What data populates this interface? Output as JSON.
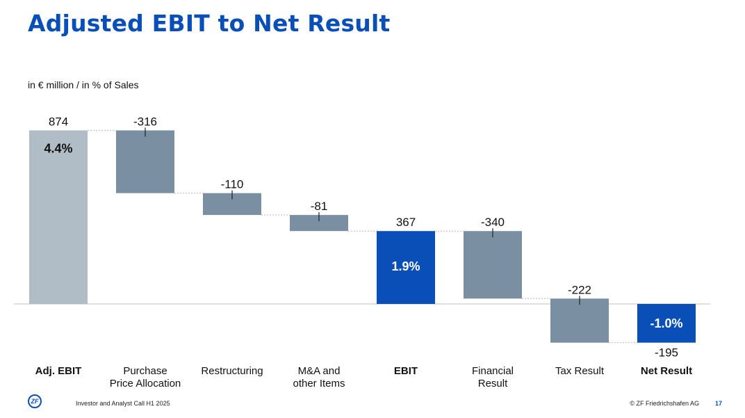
{
  "page": {
    "title": "Adjusted EBIT to Net Result",
    "subtitle": "in € million / in % of Sales"
  },
  "footer": {
    "logo_text": "ZF",
    "left_text": "Investor and Analyst Call H1 2025",
    "right_text": "© ZF Friedrichshafen AG",
    "page_number": "17"
  },
  "colors": {
    "title": "#0a4fb8",
    "total_light": "#b0bcc6",
    "delta": "#7a8fa1",
    "total_blue": "#0a4fb8",
    "baseline": "#bfbfbf",
    "connector": "#b8b8b8"
  },
  "chart_data": {
    "type": "waterfall",
    "title": "Adjusted EBIT to Net Result",
    "ylabel": "€ million",
    "ylim": [
      -200,
      900
    ],
    "bars": [
      {
        "category_lines": [
          "Adj. EBIT"
        ],
        "value": 874,
        "value_label": "874",
        "kind": "total",
        "style": "light",
        "pct_label": "4.4%",
        "bold_label": true
      },
      {
        "category_lines": [
          "Purchase",
          "Price Allocation"
        ],
        "value": -316,
        "value_label": "-316",
        "kind": "delta",
        "style": "delta",
        "bold_label": false
      },
      {
        "category_lines": [
          "Restructuring"
        ],
        "value": -110,
        "value_label": "-110",
        "kind": "delta",
        "style": "delta",
        "bold_label": false
      },
      {
        "category_lines": [
          "M&A and",
          "other Items"
        ],
        "value": -81,
        "value_label": "-81",
        "kind": "delta",
        "style": "delta",
        "bold_label": false
      },
      {
        "category_lines": [
          "EBIT"
        ],
        "value": 367,
        "value_label": "367",
        "kind": "total",
        "style": "blue",
        "pct_label": "1.9%",
        "bold_label": true
      },
      {
        "category_lines": [
          "Financial",
          "Result"
        ],
        "value": -340,
        "value_label": "-340",
        "kind": "delta",
        "style": "delta",
        "bold_label": false
      },
      {
        "category_lines": [
          "Tax Result"
        ],
        "value": -222,
        "value_label": "-222",
        "kind": "delta",
        "style": "delta",
        "bold_label": false
      },
      {
        "category_lines": [
          "Net Result"
        ],
        "value": -195,
        "value_label": "-195",
        "kind": "total",
        "style": "blue",
        "pct_label": "-1.0%",
        "bold_label": true
      }
    ]
  }
}
